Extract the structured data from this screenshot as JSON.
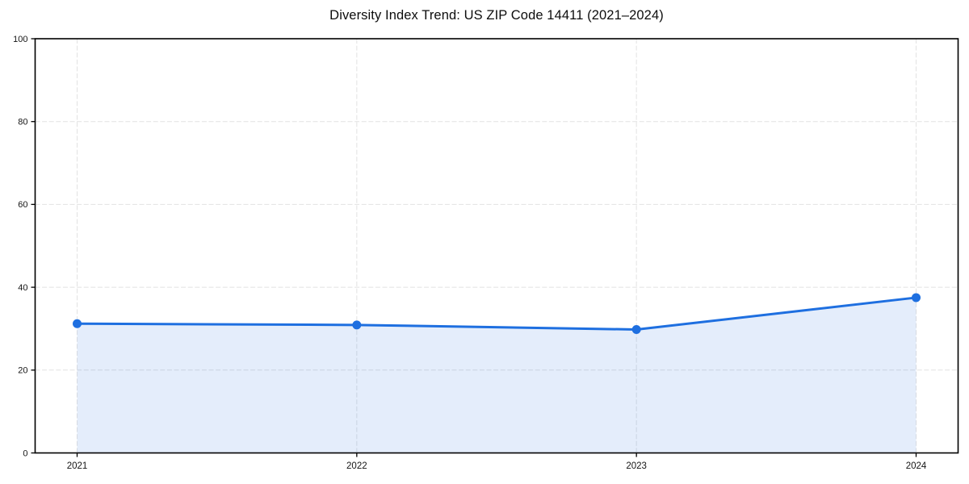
{
  "chart_data": {
    "type": "area",
    "title": "Diversity Index Trend: US ZIP Code 14411 (2021–2024)",
    "x": [
      "2021",
      "2022",
      "2023",
      "2024"
    ],
    "series": [
      {
        "name": "Diversity Index",
        "values": [
          31.2,
          30.9,
          29.8,
          37.5
        ]
      }
    ],
    "xlabel": "",
    "ylabel": "",
    "ylim": [
      0,
      100
    ],
    "yticks": [
      0,
      20,
      40,
      60,
      80,
      100
    ],
    "grid": "dashed horizontal and vertical gridlines at ticks",
    "legend": "none",
    "marker": "circle",
    "colors": {
      "line": "#1e6fe0",
      "marker": "#1e6fe0",
      "fill": "rgba(30, 111, 224, 0.12)",
      "grid": "#e2e2e2",
      "spine": "#000000",
      "tick_label": "#141414",
      "title": "#0d0d0d",
      "background": "#ffffff"
    }
  }
}
